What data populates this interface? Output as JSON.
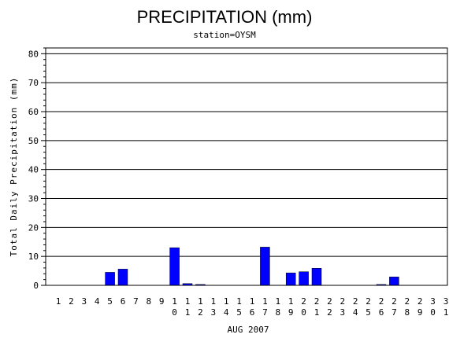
{
  "chart_data": {
    "type": "bar",
    "title": "PRECIPITATION (mm)",
    "subtitle": "station=OYSM",
    "xlabel": "AUG 2007",
    "ylabel": "Total Daily Precipitation (mm)",
    "ylim": [
      0,
      82
    ],
    "yticks": [
      0,
      10,
      20,
      30,
      40,
      50,
      60,
      70,
      80
    ],
    "grid": "horizontal",
    "bar_color": "#0000ff",
    "categories": [
      "1",
      "2",
      "3",
      "4",
      "5",
      "6",
      "7",
      "8",
      "9",
      "10",
      "11",
      "12",
      "13",
      "14",
      "15",
      "16",
      "17",
      "18",
      "19",
      "20",
      "21",
      "22",
      "23",
      "24",
      "25",
      "26",
      "27",
      "28",
      "29",
      "30",
      "31"
    ],
    "values": [
      0,
      0,
      0,
      0,
      4.5,
      5.6,
      0,
      0,
      0,
      13,
      0.6,
      0.3,
      0,
      0,
      0,
      0,
      13.2,
      0,
      4.3,
      4.7,
      5.9,
      0,
      0,
      0,
      0,
      0.3,
      2.9,
      0,
      0,
      0,
      0
    ]
  }
}
